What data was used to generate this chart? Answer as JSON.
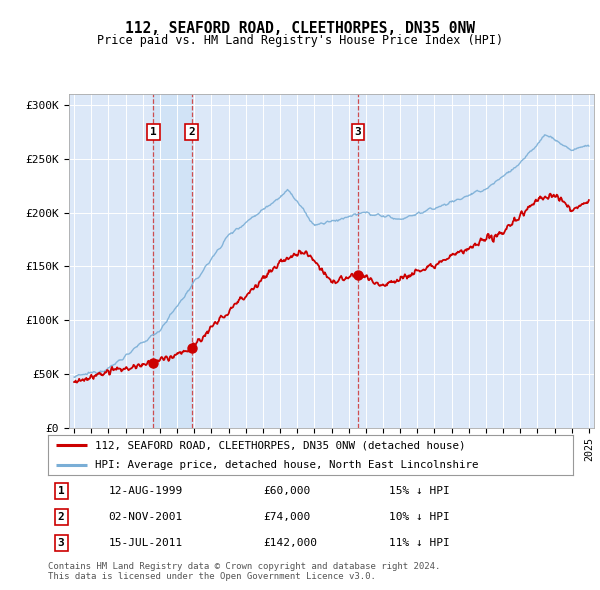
{
  "title": "112, SEAFORD ROAD, CLEETHORPES, DN35 0NW",
  "subtitle": "Price paid vs. HM Land Registry's House Price Index (HPI)",
  "red_label": "112, SEAFORD ROAD, CLEETHORPES, DN35 0NW (detached house)",
  "blue_label": "HPI: Average price, detached house, North East Lincolnshire",
  "footnote1": "Contains HM Land Registry data © Crown copyright and database right 2024.",
  "footnote2": "This data is licensed under the Open Government Licence v3.0.",
  "transactions": [
    {
      "num": 1,
      "date": "12-AUG-1999",
      "price": "£60,000",
      "hpi": "15% ↓ HPI",
      "year": 1999.62
    },
    {
      "num": 2,
      "date": "02-NOV-2001",
      "price": "£74,000",
      "hpi": "10% ↓ HPI",
      "year": 2001.84
    },
    {
      "num": 3,
      "date": "15-JUL-2011",
      "price": "£142,000",
      "hpi": "11% ↓ HPI",
      "year": 2011.54
    }
  ],
  "transaction_values": [
    60000,
    74000,
    142000
  ],
  "plot_bg": "#dce8f8",
  "red_color": "#cc0000",
  "blue_color": "#7aaed6",
  "ylim": [
    0,
    310000
  ],
  "yticks": [
    0,
    50000,
    100000,
    150000,
    200000,
    250000,
    300000
  ],
  "ytick_labels": [
    "£0",
    "£50K",
    "£100K",
    "£150K",
    "£200K",
    "£250K",
    "£300K"
  ],
  "xlim_start": 1994.7,
  "xlim_end": 2025.3
}
